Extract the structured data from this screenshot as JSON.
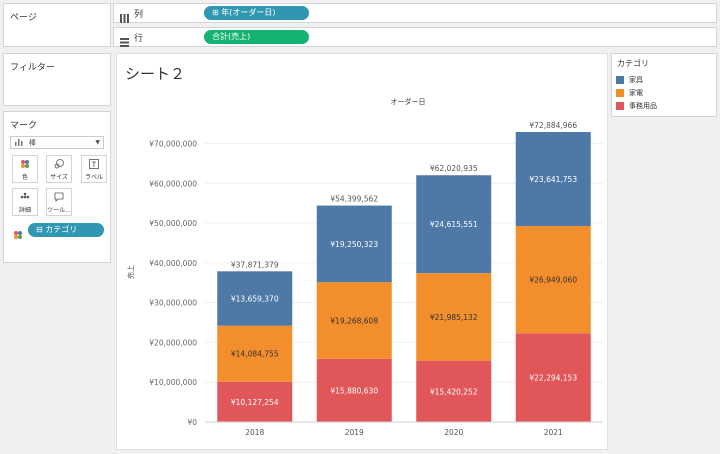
{
  "left_panel": {
    "pages_title": "ページ",
    "filters_title": "フィルター",
    "marks": {
      "title": "マーク",
      "mark_type": "棒",
      "mark_type_icon": "bar-chart-icon",
      "buttons": [
        {
          "label": "色",
          "icon": "color-icon"
        },
        {
          "label": "サイズ",
          "icon": "size-icon"
        },
        {
          "label": "ラベル",
          "icon": "label-icon"
        },
        {
          "label": "詳細",
          "icon": "detail-icon"
        },
        {
          "label": "ツール...",
          "icon": "tooltip-icon"
        }
      ],
      "color_pill": "カテゴリ"
    }
  },
  "shelves": {
    "columns": {
      "label": "列",
      "pill": "年(オーダー日)"
    },
    "rows": {
      "label": "行",
      "pill": "合計(売上)"
    }
  },
  "sheet_title": "シート２",
  "legend": {
    "title": "カテゴリ",
    "items": [
      {
        "label": "家具",
        "color": "#4e79a7"
      },
      {
        "label": "家電",
        "color": "#f28e2b"
      },
      {
        "label": "事務用品",
        "color": "#e15759"
      }
    ]
  },
  "colors": {
    "columns_pill": "#2f97b1",
    "rows_pill": "#15b371"
  },
  "chart_data": {
    "type": "bar",
    "stacked": true,
    "title": "オーダー日",
    "ylabel": "売上",
    "xlabel": "",
    "categories": [
      "2018",
      "2019",
      "2020",
      "2021"
    ],
    "series": [
      {
        "name": "事務用品",
        "color": "#e15759",
        "values": [
          10127254,
          15880630,
          15420252,
          22294153
        ],
        "labels": [
          "¥10,127,254",
          "¥15,880,630",
          "¥15,420,252",
          "¥22,294,153"
        ]
      },
      {
        "name": "家電",
        "color": "#f28e2b",
        "values": [
          14084755,
          19268608,
          21985132,
          26949060
        ],
        "labels": [
          "¥14,084,755",
          "¥19,268,608",
          "¥21,985,132",
          "¥26,949,060"
        ]
      },
      {
        "name": "家具",
        "color": "#4e79a7",
        "values": [
          13659370,
          19250323,
          24615551,
          23641753
        ],
        "labels": [
          "¥13,659,370",
          "¥19,250,323",
          "¥24,615,551",
          "¥23,641,753"
        ]
      }
    ],
    "totals": [
      "¥37,871,379",
      "¥54,399,562",
      "¥62,020,935",
      "¥72,884,966"
    ],
    "yticks": [
      0,
      10000000,
      20000000,
      30000000,
      40000000,
      50000000,
      60000000,
      70000000
    ],
    "ytick_labels": [
      "¥0",
      "¥10,000,000",
      "¥20,000,000",
      "¥30,000,000",
      "¥40,000,000",
      "¥50,000,000",
      "¥60,000,000",
      "¥70,000,000"
    ],
    "ylim": [
      0,
      72884966
    ]
  }
}
